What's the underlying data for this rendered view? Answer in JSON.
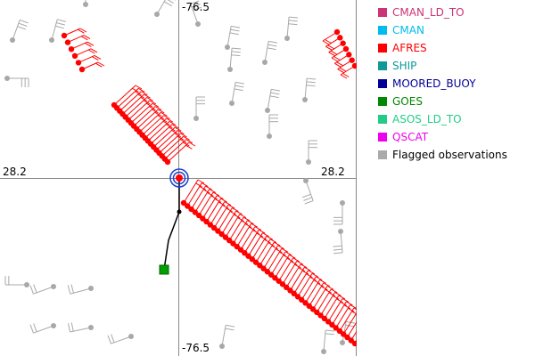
{
  "map": {
    "lat_label_top": "-76.5",
    "lat_label_bottom": "-76.5",
    "lon_label_left": "28.2",
    "lon_label_right": "28.2",
    "colors": {
      "background": "#ffffff",
      "axis": "#888888",
      "flagged": "#a8a8a8",
      "afres": "#ff0000",
      "track": "#000000",
      "goes": "#00a000",
      "center_ring": "#1a3fd0"
    }
  },
  "legend": {
    "items": [
      {
        "label": "CMAN_LD_TO",
        "swatch": "#cc3377",
        "text_color": "#cc3377"
      },
      {
        "label": "CMAN",
        "swatch": "#00bbee",
        "text_color": "#00bbee"
      },
      {
        "label": "AFRES",
        "swatch": "#ff0000",
        "text_color": "#ff0000"
      },
      {
        "label": "SHIP",
        "swatch": "#119999",
        "text_color": "#119999"
      },
      {
        "label": "MOORED_BUOY",
        "swatch": "#000099",
        "text_color": "#000099"
      },
      {
        "label": "GOES",
        "swatch": "#008800",
        "text_color": "#008800"
      },
      {
        "label": "ASOS_LD_TO",
        "swatch": "#22cc88",
        "text_color": "#22cc88"
      },
      {
        "label": "QSCAT",
        "swatch": "#ee00ee",
        "text_color": "#ee00ee"
      },
      {
        "label": "Flagged observations",
        "swatch": "#aaaaaa",
        "text_color": "#000000"
      }
    ]
  }
}
